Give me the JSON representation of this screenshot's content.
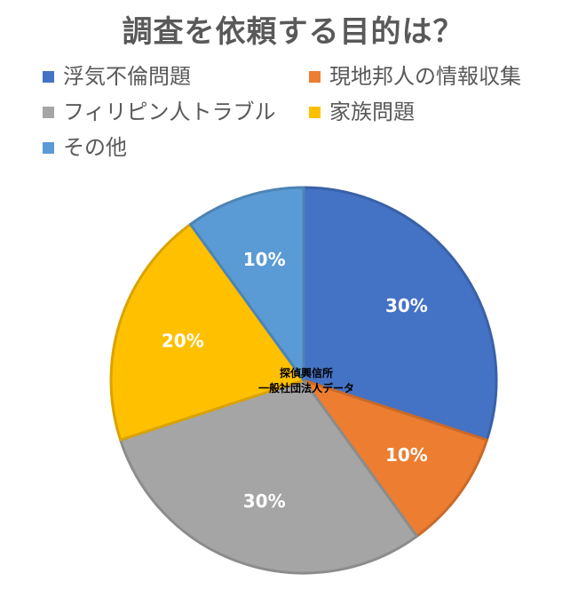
{
  "chart_data": {
    "type": "pie",
    "title": "調査を依頼する目的は？",
    "categories": [
      "浮気不倫問題",
      "現地邦人の情報収集",
      "フィリピン人トラブル",
      "家族問題",
      "その他"
    ],
    "values": [
      30,
      10,
      30,
      20,
      10
    ],
    "data_labels": [
      "30%",
      "10%",
      "30%",
      "20%",
      "10%"
    ],
    "colors": [
      "#4472C4",
      "#ED7D31",
      "#A5A5A5",
      "#FFC000",
      "#5B9BD5"
    ],
    "legend_position": "top-left",
    "start_angle": "12-o-clock",
    "direction": "clockwise"
  },
  "watermark": {
    "line1": "探偵興信所",
    "line2": "一般社団法人データ"
  }
}
